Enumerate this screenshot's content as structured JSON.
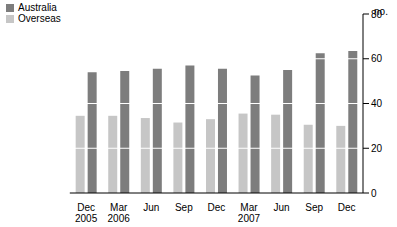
{
  "chart_data": {
    "type": "bar",
    "y_label": "no.",
    "categories": [
      "Dec 2005",
      "Mar 2006",
      "Jun",
      "Sep",
      "Dec",
      "Mar 2007",
      "Jun",
      "Sep",
      "Dec"
    ],
    "series": [
      {
        "name": "Overseas",
        "color": "#c6c6c6",
        "values": [
          34.5,
          34.5,
          33.5,
          31.5,
          33,
          35.5,
          35,
          30.5,
          30
        ]
      },
      {
        "name": "Australia",
        "color": "#7d7d7d",
        "values": [
          54,
          54.5,
          55.5,
          57,
          55.5,
          52.5,
          55,
          62.5,
          63.5
        ]
      }
    ],
    "ylim": [
      0,
      80
    ],
    "yticks": [
      0,
      20,
      40,
      60,
      80
    ],
    "grid": true,
    "legend": "top-left"
  }
}
